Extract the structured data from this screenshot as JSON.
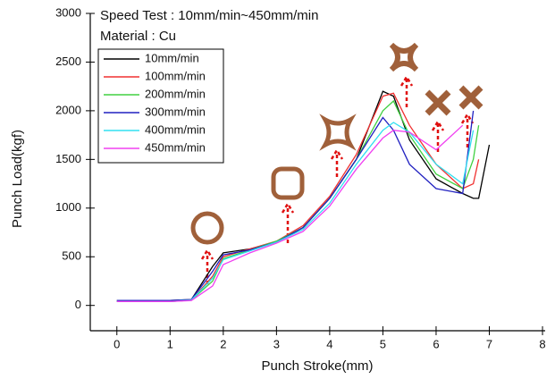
{
  "chart_data": {
    "type": "line",
    "annotations": [
      "Speed Test : 10mm/min~450mm/min",
      "Material : Cu"
    ],
    "x_label": "Punch Stroke(mm)",
    "y_label": "Punch Load(kgf)",
    "x": [
      0,
      1,
      1.4,
      1.8,
      2,
      2.5,
      3,
      3.5,
      4,
      4.5,
      5,
      5.2,
      5.5,
      6,
      6.5,
      6.7,
      6.8,
      7
    ],
    "series": [
      {
        "name": "10mm/min",
        "color": "#000000",
        "values": [
          50,
          50,
          60,
          400,
          540,
          580,
          650,
          800,
          1100,
          1500,
          2200,
          2150,
          1700,
          1300,
          1150,
          1100,
          1100,
          1650
        ]
      },
      {
        "name": "100mm/min",
        "color": "#f03030",
        "values": [
          40,
          40,
          55,
          300,
          500,
          580,
          660,
          820,
          1120,
          1550,
          2150,
          2180,
          1850,
          1450,
          1200,
          1250,
          1500,
          null
        ]
      },
      {
        "name": "200mm/min",
        "color": "#40d040",
        "values": [
          40,
          40,
          55,
          250,
          480,
          570,
          660,
          800,
          1100,
          1500,
          2000,
          2100,
          1750,
          1350,
          1200,
          1500,
          1850,
          null
        ]
      },
      {
        "name": "300mm/min",
        "color": "#2020c0",
        "values": [
          50,
          50,
          60,
          350,
          520,
          570,
          650,
          800,
          1100,
          1500,
          1930,
          1800,
          1450,
          1200,
          1150,
          2000,
          null,
          null
        ]
      },
      {
        "name": "400mm/min",
        "color": "#30e0f0",
        "values": [
          40,
          40,
          55,
          280,
          470,
          560,
          650,
          780,
          1050,
          1450,
          1800,
          1880,
          1780,
          1450,
          1250,
          1800,
          null,
          null
        ]
      },
      {
        "name": "450mm/min",
        "color": "#f040f0",
        "values": [
          40,
          40,
          50,
          200,
          420,
          540,
          640,
          760,
          1020,
          1400,
          1720,
          1800,
          1780,
          1600,
          1850,
          null,
          null,
          null
        ]
      }
    ],
    "xlim": [
      -0.5,
      8.05
    ],
    "xticks": [
      0,
      1,
      2,
      3,
      4,
      5,
      6,
      7,
      8
    ],
    "ylim": [
      -260,
      3000
    ],
    "yticks": [
      0,
      500,
      1000,
      1500,
      2000,
      2500,
      3000
    ],
    "grid": false
  }
}
